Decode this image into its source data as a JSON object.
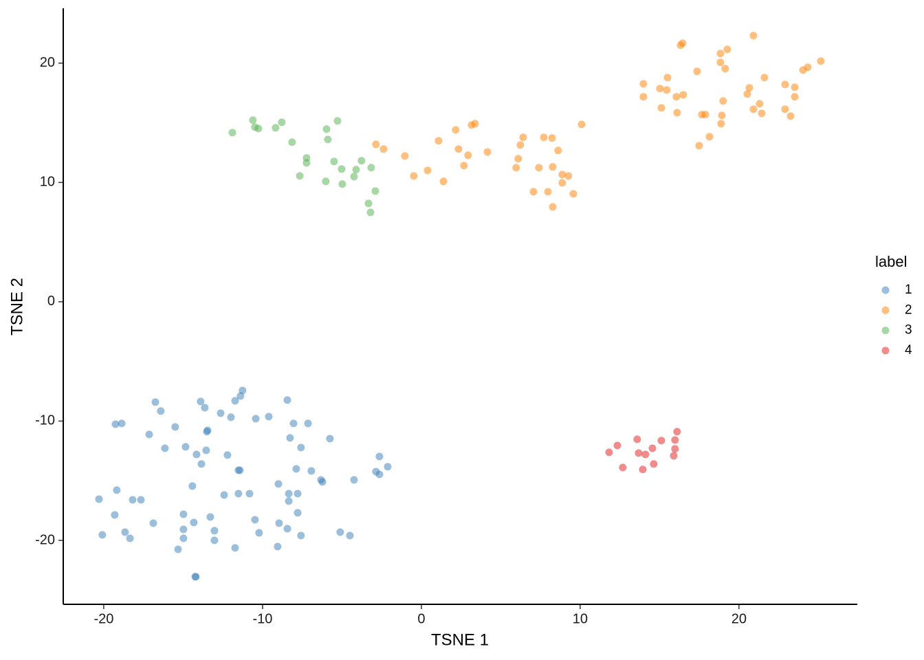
{
  "chart_data": {
    "type": "scatter",
    "x_label": "TSNE 1",
    "y_label": "TSNE 2",
    "legend_title": "label",
    "legend_position": "right",
    "grid": false,
    "xlim": [
      -22.55,
      27.45
    ],
    "ylim": [
      -25.36,
      24.6
    ],
    "xticks": [
      -20,
      -10,
      0,
      10,
      20
    ],
    "yticks": [
      -20,
      -10,
      0,
      10,
      20
    ],
    "series": [
      {
        "name": "1",
        "color": "#377eb8",
        "x": [
          -11.26,
          -11.39,
          -16.75,
          -13.9,
          -8.44,
          -11.73,
          -13.64,
          -16.41,
          -12.64,
          -19.26,
          -18.87,
          -15.5,
          -11.99,
          -10.43,
          -9.61,
          -8.05,
          -7.14,
          -13.46,
          -13.51,
          -17.14,
          -8.27,
          -5.76,
          -16.15,
          -14.85,
          -13.55,
          -7.58,
          -14.16,
          -12.21,
          -2.64,
          -13.85,
          -2.12,
          -11.43,
          -11.52,
          -7.88,
          -6.93,
          -2.86,
          -2.64,
          -6.32,
          -6.23,
          -4.24,
          -14.42,
          -9.0,
          -8.35,
          -7.79,
          -11.52,
          -10.82,
          -12.42,
          -20.3,
          -19.18,
          -18.18,
          -17.66,
          -8.35,
          -7.79,
          -14.98,
          -13.29,
          -19.31,
          -16.88,
          -14.33,
          -10.48,
          -8.96,
          -8.44,
          -20.09,
          -18.66,
          -18.35,
          -14.98,
          -13.03,
          -10.22,
          -7.58,
          -5.11,
          -4.5,
          -14.98,
          -13.03,
          -11.73,
          -15.32,
          -9.05,
          -14.24,
          -14.2
        ],
        "values": [
          -7.44,
          -7.9,
          -8.41,
          -8.36,
          -8.24,
          -8.3,
          -8.88,
          -9.16,
          -9.34,
          -10.26,
          -10.2,
          -10.49,
          -9.68,
          -9.8,
          -9.63,
          -10.2,
          -10.2,
          -10.78,
          -10.89,
          -11.12,
          -11.41,
          -11.47,
          -12.28,
          -12.16,
          -12.45,
          -12.22,
          -12.8,
          -12.85,
          -12.97,
          -13.6,
          -13.83,
          -14.12,
          -14.12,
          -14.01,
          -14.18,
          -14.24,
          -14.47,
          -14.93,
          -15.1,
          -14.93,
          -15.45,
          -15.27,
          -16.08,
          -16.08,
          -16.08,
          -16.08,
          -16.2,
          -16.54,
          -15.79,
          -16.6,
          -16.6,
          -16.71,
          -17.69,
          -17.81,
          -18.04,
          -17.87,
          -18.56,
          -18.5,
          -18.27,
          -18.56,
          -19.02,
          -19.54,
          -19.31,
          -19.83,
          -19.08,
          -19.19,
          -19.37,
          -19.6,
          -19.31,
          -19.6,
          -19.83,
          -20.0,
          -20.63,
          -20.75,
          -20.52,
          -23.05,
          -23.05
        ]
      },
      {
        "name": "2",
        "color": "#ff7f00",
        "x": [
          20.91,
          16.45,
          16.32,
          19.26,
          18.83,
          25.15,
          24.33,
          24.03,
          18.83,
          19.13,
          17.36,
          21.6,
          15.5,
          13.98,
          20.65,
          22.9,
          23.51,
          15.02,
          15.45,
          16.49,
          16.06,
          13.98,
          20.52,
          23.51,
          19.0,
          21.3,
          20.91,
          15.11,
          16.1,
          21.43,
          22.9,
          23.25,
          17.66,
          17.88,
          18.92,
          18.87,
          18.14,
          17.49,
          10.09,
          3.38,
          3.16,
          2.16,
          -2.86,
          -2.38,
          1.08,
          2.34,
          4.16,
          2.94,
          2.68,
          -1.04,
          0.39,
          -0.48,
          1.39,
          6.41,
          6.23,
          7.71,
          8.23,
          8.61,
          6.1,
          5.97,
          7.4,
          8.27,
          8.87,
          9.26,
          8.87,
          7.06,
          7.97,
          9.57,
          8.27
        ],
        "values": [
          22.31,
          21.67,
          21.5,
          21.15,
          20.81,
          20.17,
          19.65,
          19.42,
          20.06,
          19.54,
          19.31,
          18.79,
          18.79,
          18.27,
          17.93,
          18.21,
          17.98,
          17.87,
          17.75,
          17.35,
          17.18,
          17.18,
          17.41,
          17.18,
          16.83,
          16.6,
          16.14,
          16.25,
          15.85,
          15.79,
          16.14,
          15.56,
          15.68,
          15.68,
          15.62,
          14.93,
          13.83,
          13.08,
          14.87,
          14.93,
          14.81,
          14.41,
          13.2,
          12.8,
          13.49,
          12.8,
          12.56,
          12.28,
          11.41,
          12.22,
          11.01,
          10.55,
          10.09,
          13.78,
          13.14,
          13.78,
          13.72,
          12.68,
          11.99,
          11.24,
          11.24,
          11.3,
          10.66,
          10.55,
          9.97,
          9.22,
          9.22,
          9.05,
          7.95
        ]
      },
      {
        "name": "3",
        "color": "#4daf4a",
        "x": [
          -10.61,
          -11.9,
          -10.48,
          -10.26,
          -8.79,
          -9.18,
          -5.97,
          -5.28,
          -8.14,
          -5.89,
          -7.23,
          -7.23,
          -5.5,
          -3.77,
          -5.02,
          -4.11,
          -3.16,
          -7.66,
          -6.02,
          -4.24,
          -4.98,
          -2.9,
          -3.33,
          -3.2
        ],
        "values": [
          15.22,
          14.18,
          14.64,
          14.52,
          15.04,
          14.58,
          14.47,
          15.16,
          13.37,
          13.6,
          12.05,
          11.64,
          11.76,
          11.82,
          11.12,
          11.07,
          11.24,
          10.55,
          10.09,
          10.49,
          9.86,
          9.28,
          8.24,
          7.49
        ]
      },
      {
        "name": "4",
        "color": "#e41a1c",
        "x": [
          16.1,
          13.59,
          15.11,
          15.97,
          12.34,
          11.82,
          14.55,
          15.97,
          13.68,
          14.11,
          15.89,
          14.63,
          12.68,
          13.94
        ],
        "values": [
          -10.89,
          -11.53,
          -11.64,
          -11.59,
          -12.05,
          -12.62,
          -12.28,
          -12.33,
          -12.68,
          -12.8,
          -12.91,
          -13.6,
          -13.89,
          -14.06
        ]
      }
    ]
  }
}
